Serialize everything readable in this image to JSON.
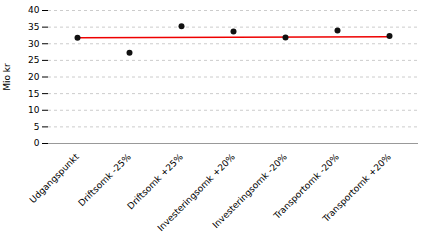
{
  "chart_data": {
    "type": "scatter",
    "categories": [
      "Udgangspunkt",
      "Driftsomk -25%",
      "Driftsomk +25%",
      "Investeringsomk +20%",
      "Investeringsomk -20%",
      "Transportomk -20%",
      "Transportomk +20%"
    ],
    "values": [
      31.8,
      27.3,
      35.3,
      33.7,
      31.9,
      34.0,
      32.3
    ],
    "color": "#111111",
    "marker": "circle",
    "reference_line": {
      "values": [
        31.8,
        32.1
      ],
      "color": "#ee0000"
    },
    "ylabel": "Mio kr",
    "ylim": [
      0,
      40
    ],
    "yticks": [
      0,
      5,
      10,
      15,
      20,
      25,
      30,
      35,
      40
    ],
    "grid": true
  }
}
